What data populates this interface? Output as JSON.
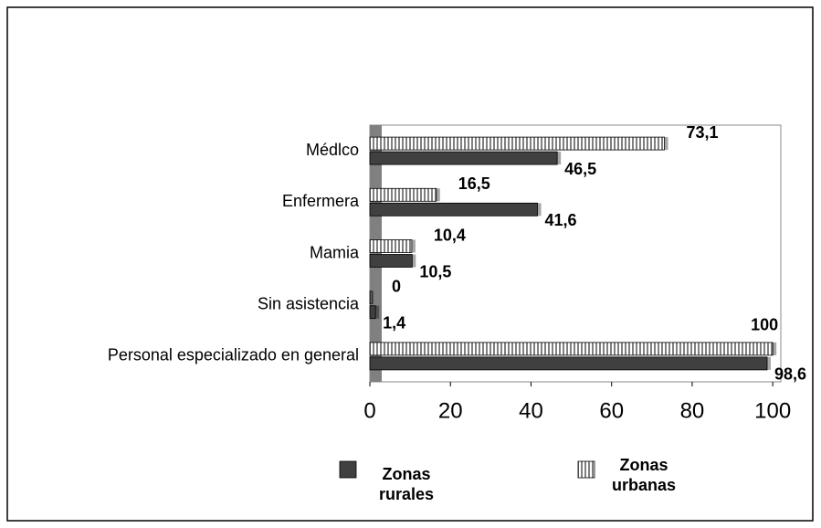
{
  "chart_data": {
    "type": "bar",
    "orientation": "horizontal",
    "categories": [
      "Médlco",
      "Enfermera",
      "Mamia",
      "Sin asistencia",
      "Personal especializado en general"
    ],
    "series": [
      {
        "name": "Zonas urbanas",
        "color": "#808080",
        "pattern": "vertical-stripes",
        "values": [
          73.1,
          16.5,
          10.4,
          0,
          100
        ],
        "value_labels": [
          "73,1",
          "16,5",
          "10,4",
          "0",
          "100"
        ]
      },
      {
        "name": "Zonas rurales",
        "color": "#404040",
        "values": [
          46.5,
          41.6,
          10.5,
          1.4,
          98.6
        ],
        "value_labels": [
          "46,5",
          "41,6",
          "10,5",
          "1,4",
          "98,6"
        ]
      }
    ],
    "xlim": [
      0,
      102
    ],
    "xticks": [
      0,
      20,
      40,
      60,
      80,
      100
    ],
    "grid": false,
    "legend": "bottom"
  }
}
